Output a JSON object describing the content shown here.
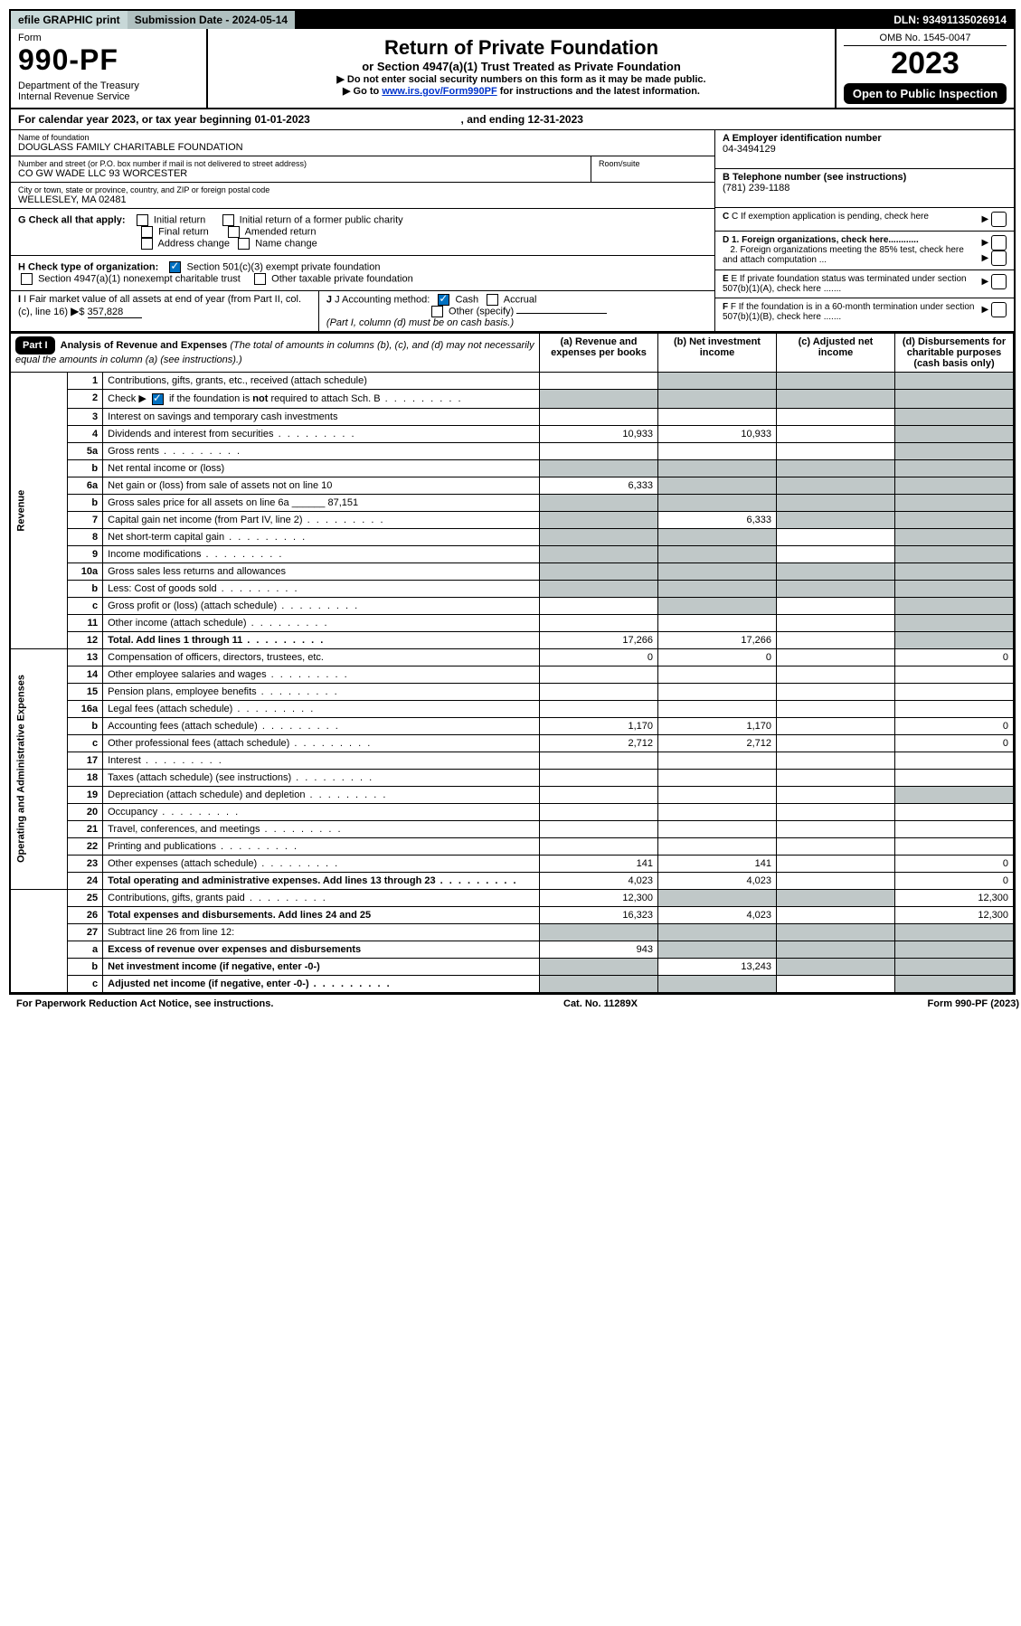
{
  "topbar": {
    "efile": "efile GRAPHIC print",
    "subdate_label": "Submission Date - ",
    "subdate": "2024-05-14",
    "dln_label": "DLN: ",
    "dln": "93491135026914"
  },
  "header": {
    "form_label": "Form",
    "form_no": "990-PF",
    "dept": "Department of the Treasury\nInternal Revenue Service",
    "title": "Return of Private Foundation",
    "subtitle": "or Section 4947(a)(1) Trust Treated as Private Foundation",
    "note1": "▶ Do not enter social security numbers on this form as it may be made public.",
    "note2_a": "▶ Go to ",
    "note2_link": "www.irs.gov/Form990PF",
    "note2_b": " for instructions and the latest information.",
    "omb": "OMB No. 1545-0047",
    "year": "2023",
    "open": "Open to Public Inspection"
  },
  "calendar": {
    "text_a": "For calendar year 2023, or tax year beginning ",
    "begin": "01-01-2023",
    "text_b": ", and ending ",
    "end": "12-31-2023"
  },
  "info": {
    "name_label": "Name of foundation",
    "name": "DOUGLASS FAMILY CHARITABLE FOUNDATION",
    "addr_label": "Number and street (or P.O. box number if mail is not delivered to street address)",
    "addr": "CO GW WADE LLC 93 WORCESTER",
    "room_label": "Room/suite",
    "city_label": "City or town, state or province, country, and ZIP or foreign postal code",
    "city": "WELLESLEY, MA  02481",
    "ein_label": "A Employer identification number",
    "ein": "04-3494129",
    "tel_label": "B Telephone number (see instructions)",
    "tel": "(781) 239-1188",
    "c_label": "C If exemption application is pending, check here",
    "d1": "D 1. Foreign organizations, check here............",
    "d2": "2. Foreign organizations meeting the 85% test, check here and attach computation ...",
    "e": "E  If private foundation status was terminated under section 507(b)(1)(A), check here .......",
    "f": "F  If the foundation is in a 60-month termination under section 507(b)(1)(B), check here ......."
  },
  "checks": {
    "g_label": "G Check all that apply:",
    "g_opts": [
      "Initial return",
      "Final return",
      "Address change",
      "Initial return of a former public charity",
      "Amended return",
      "Name change"
    ],
    "h_label": "H Check type of organization:",
    "h_opts": [
      "Section 501(c)(3) exempt private foundation",
      "Section 4947(a)(1) nonexempt charitable trust",
      "Other taxable private foundation"
    ],
    "i_label": "I Fair market value of all assets at end of year (from Part II, col. (c), line 16)",
    "i_val": "357,828",
    "j_label": "J Accounting method:",
    "j_opts": [
      "Cash",
      "Accrual",
      "Other (specify)"
    ],
    "j_note": "(Part I, column (d) must be on cash basis.)"
  },
  "part1": {
    "label": "Part I",
    "title": "Analysis of Revenue and Expenses",
    "desc": " (The total of amounts in columns (b), (c), and (d) may not necessarily equal the amounts in column (a) (see instructions).)",
    "col_a": "(a)  Revenue and expenses per books",
    "col_b": "(b)  Net investment income",
    "col_c": "(c)  Adjusted net income",
    "col_d": "(d)  Disbursements for charitable purposes (cash basis only)"
  },
  "sections": {
    "revenue": "Revenue",
    "expenses": "Operating and Administrative Expenses"
  },
  "rows": [
    {
      "n": "1",
      "d": "Contributions, gifts, grants, etc., received (attach schedule)",
      "a": "",
      "b": "",
      "c": "",
      "dd": "",
      "sb": true,
      "sc": true,
      "sd": true
    },
    {
      "n": "2",
      "d": "Check ▶ [✓] if the foundation is not required to attach Sch. B",
      "dots": true,
      "a": "",
      "b": "",
      "c": "",
      "dd": "",
      "sa": true,
      "sb": true,
      "sc": true,
      "sd": true
    },
    {
      "n": "3",
      "d": "Interest on savings and temporary cash investments",
      "a": "",
      "b": "",
      "c": "",
      "dd": "",
      "sd": true
    },
    {
      "n": "4",
      "d": "Dividends and interest from securities",
      "dots": true,
      "a": "10,933",
      "b": "10,933",
      "c": "",
      "dd": "",
      "sd": true
    },
    {
      "n": "5a",
      "d": "Gross rents",
      "dots": true,
      "a": "",
      "b": "",
      "c": "",
      "dd": "",
      "sd": true
    },
    {
      "n": "b",
      "d": "Net rental income or (loss)",
      "a": "",
      "b": "",
      "c": "",
      "dd": "",
      "sa": true,
      "sb": true,
      "sc": true,
      "sd": true
    },
    {
      "n": "6a",
      "d": "Net gain or (loss) from sale of assets not on line 10",
      "a": "6,333",
      "b": "",
      "c": "",
      "dd": "",
      "sb": true,
      "sc": true,
      "sd": true
    },
    {
      "n": "b",
      "d": "Gross sales price for all assets on line 6a ______ 87,151",
      "a": "",
      "b": "",
      "c": "",
      "dd": "",
      "sa": true,
      "sb": true,
      "sc": true,
      "sd": true
    },
    {
      "n": "7",
      "d": "Capital gain net income (from Part IV, line 2)",
      "dots": true,
      "a": "",
      "b": "6,333",
      "c": "",
      "dd": "",
      "sa": true,
      "sc": true,
      "sd": true
    },
    {
      "n": "8",
      "d": "Net short-term capital gain",
      "dots": true,
      "a": "",
      "b": "",
      "c": "",
      "dd": "",
      "sa": true,
      "sb": true,
      "sd": true
    },
    {
      "n": "9",
      "d": "Income modifications",
      "dots": true,
      "a": "",
      "b": "",
      "c": "",
      "dd": "",
      "sa": true,
      "sb": true,
      "sd": true
    },
    {
      "n": "10a",
      "d": "Gross sales less returns and allowances",
      "a": "",
      "b": "",
      "c": "",
      "dd": "",
      "sa": true,
      "sb": true,
      "sc": true,
      "sd": true
    },
    {
      "n": "b",
      "d": "Less: Cost of goods sold",
      "dots": true,
      "a": "",
      "b": "",
      "c": "",
      "dd": "",
      "sa": true,
      "sb": true,
      "sc": true,
      "sd": true
    },
    {
      "n": "c",
      "d": "Gross profit or (loss) (attach schedule)",
      "dots": true,
      "a": "",
      "b": "",
      "c": "",
      "dd": "",
      "sb": true,
      "sd": true
    },
    {
      "n": "11",
      "d": "Other income (attach schedule)",
      "dots": true,
      "a": "",
      "b": "",
      "c": "",
      "dd": "",
      "sd": true
    },
    {
      "n": "12",
      "d": "Total. Add lines 1 through 11",
      "bold": true,
      "dots": true,
      "a": "17,266",
      "b": "17,266",
      "c": "",
      "dd": "",
      "sd": true
    },
    {
      "n": "13",
      "d": "Compensation of officers, directors, trustees, etc.",
      "a": "0",
      "b": "0",
      "c": "",
      "dd": "0"
    },
    {
      "n": "14",
      "d": "Other employee salaries and wages",
      "dots": true,
      "a": "",
      "b": "",
      "c": "",
      "dd": ""
    },
    {
      "n": "15",
      "d": "Pension plans, employee benefits",
      "dots": true,
      "a": "",
      "b": "",
      "c": "",
      "dd": ""
    },
    {
      "n": "16a",
      "d": "Legal fees (attach schedule)",
      "dots": true,
      "a": "",
      "b": "",
      "c": "",
      "dd": ""
    },
    {
      "n": "b",
      "d": "Accounting fees (attach schedule)",
      "dots": true,
      "a": "1,170",
      "b": "1,170",
      "c": "",
      "dd": "0"
    },
    {
      "n": "c",
      "d": "Other professional fees (attach schedule)",
      "dots": true,
      "a": "2,712",
      "b": "2,712",
      "c": "",
      "dd": "0"
    },
    {
      "n": "17",
      "d": "Interest",
      "dots": true,
      "a": "",
      "b": "",
      "c": "",
      "dd": ""
    },
    {
      "n": "18",
      "d": "Taxes (attach schedule) (see instructions)",
      "dots": true,
      "a": "",
      "b": "",
      "c": "",
      "dd": ""
    },
    {
      "n": "19",
      "d": "Depreciation (attach schedule) and depletion",
      "dots": true,
      "a": "",
      "b": "",
      "c": "",
      "dd": "",
      "sd": true
    },
    {
      "n": "20",
      "d": "Occupancy",
      "dots": true,
      "a": "",
      "b": "",
      "c": "",
      "dd": ""
    },
    {
      "n": "21",
      "d": "Travel, conferences, and meetings",
      "dots": true,
      "a": "",
      "b": "",
      "c": "",
      "dd": ""
    },
    {
      "n": "22",
      "d": "Printing and publications",
      "dots": true,
      "a": "",
      "b": "",
      "c": "",
      "dd": ""
    },
    {
      "n": "23",
      "d": "Other expenses (attach schedule)",
      "dots": true,
      "a": "141",
      "b": "141",
      "c": "",
      "dd": "0"
    },
    {
      "n": "24",
      "d": "Total operating and administrative expenses. Add lines 13 through 23",
      "bold": true,
      "dots": true,
      "a": "4,023",
      "b": "4,023",
      "c": "",
      "dd": "0"
    },
    {
      "n": "25",
      "d": "Contributions, gifts, grants paid",
      "dots": true,
      "a": "12,300",
      "b": "",
      "c": "",
      "dd": "12,300",
      "sb": true,
      "sc": true
    },
    {
      "n": "26",
      "d": "Total expenses and disbursements. Add lines 24 and 25",
      "bold": true,
      "a": "16,323",
      "b": "4,023",
      "c": "",
      "dd": "12,300"
    },
    {
      "n": "27",
      "d": "Subtract line 26 from line 12:",
      "a": "",
      "b": "",
      "c": "",
      "dd": "",
      "sa": true,
      "sb": true,
      "sc": true,
      "sd": true
    },
    {
      "n": "a",
      "d": "Excess of revenue over expenses and disbursements",
      "bold": true,
      "a": "943",
      "b": "",
      "c": "",
      "dd": "",
      "sb": true,
      "sc": true,
      "sd": true
    },
    {
      "n": "b",
      "d": "Net investment income (if negative, enter -0-)",
      "bold": true,
      "a": "",
      "b": "13,243",
      "c": "",
      "dd": "",
      "sa": true,
      "sc": true,
      "sd": true
    },
    {
      "n": "c",
      "d": "Adjusted net income (if negative, enter -0-)",
      "bold": true,
      "dots": true,
      "a": "",
      "b": "",
      "c": "",
      "dd": "",
      "sa": true,
      "sb": true,
      "sd": true
    }
  ],
  "footer": {
    "left": "For Paperwork Reduction Act Notice, see instructions.",
    "mid": "Cat. No. 11289X",
    "right": "Form 990-PF (2023)"
  },
  "colors": {
    "shaded": "#c0c8c8",
    "link": "#0033cc",
    "check": "#0070c0"
  }
}
